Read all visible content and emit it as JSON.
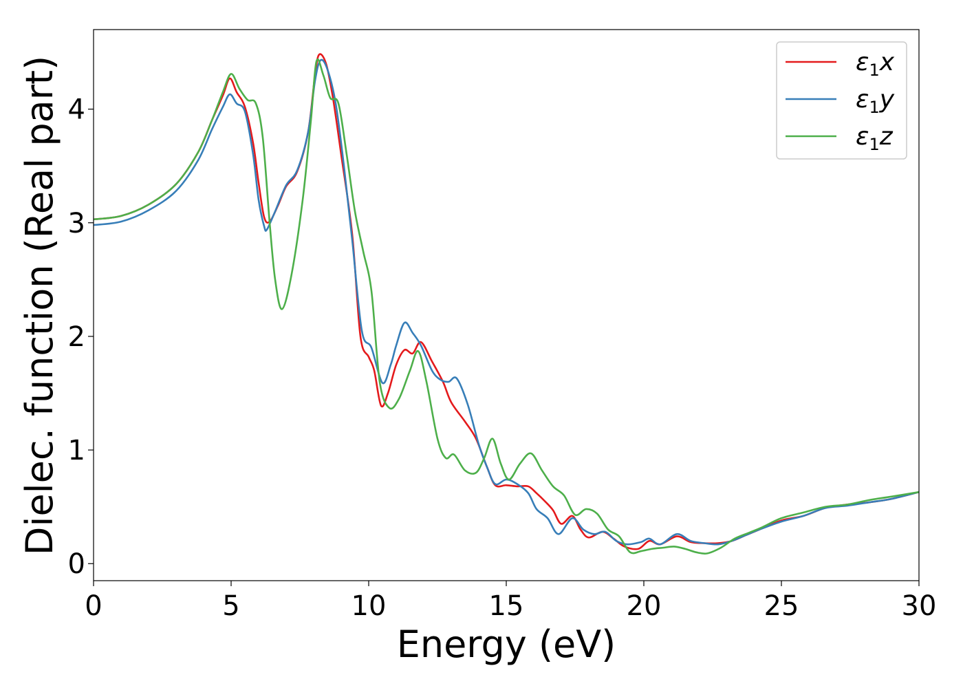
{
  "chart_data": {
    "type": "line",
    "xlabel": "Energy (eV)",
    "ylabel": "Dielec. function (Real part)",
    "xlim": [
      0,
      30
    ],
    "ylim": [
      -0.15,
      4.7
    ],
    "xticks": [
      0,
      5,
      10,
      15,
      20,
      25,
      30
    ],
    "yticks": [
      0,
      1,
      2,
      3,
      4
    ],
    "grid": false,
    "legend_position": "top-right",
    "series": [
      {
        "name": "ε1x",
        "legend_base": "ε",
        "legend_sub": "1",
        "legend_tail": "x",
        "color": "#e41a1c",
        "points": [
          [
            0,
            3.03
          ],
          [
            1,
            3.06
          ],
          [
            2,
            3.16
          ],
          [
            3,
            3.34
          ],
          [
            3.8,
            3.62
          ],
          [
            4.3,
            3.9
          ],
          [
            4.7,
            4.12
          ],
          [
            4.95,
            4.27
          ],
          [
            5.2,
            4.15
          ],
          [
            5.5,
            4.02
          ],
          [
            5.8,
            3.7
          ],
          [
            6.0,
            3.35
          ],
          [
            6.2,
            3.05
          ],
          [
            6.4,
            3.01
          ],
          [
            6.7,
            3.15
          ],
          [
            7.0,
            3.32
          ],
          [
            7.4,
            3.45
          ],
          [
            7.8,
            3.8
          ],
          [
            8.05,
            4.3
          ],
          [
            8.2,
            4.48
          ],
          [
            8.45,
            4.4
          ],
          [
            8.7,
            4.1
          ],
          [
            9.0,
            3.6
          ],
          [
            9.4,
            2.9
          ],
          [
            9.7,
            2.0
          ],
          [
            10.0,
            1.82
          ],
          [
            10.2,
            1.7
          ],
          [
            10.45,
            1.39
          ],
          [
            10.7,
            1.5
          ],
          [
            11.0,
            1.75
          ],
          [
            11.3,
            1.88
          ],
          [
            11.6,
            1.85
          ],
          [
            11.9,
            1.95
          ],
          [
            12.3,
            1.78
          ],
          [
            12.7,
            1.6
          ],
          [
            13.0,
            1.42
          ],
          [
            13.5,
            1.25
          ],
          [
            13.9,
            1.1
          ],
          [
            14.3,
            0.85
          ],
          [
            14.6,
            0.69
          ],
          [
            15.0,
            0.69
          ],
          [
            15.4,
            0.68
          ],
          [
            15.8,
            0.68
          ],
          [
            16.1,
            0.62
          ],
          [
            16.4,
            0.55
          ],
          [
            16.7,
            0.47
          ],
          [
            17.0,
            0.35
          ],
          [
            17.4,
            0.42
          ],
          [
            17.7,
            0.3
          ],
          [
            18.0,
            0.23
          ],
          [
            18.5,
            0.28
          ],
          [
            18.9,
            0.22
          ],
          [
            19.3,
            0.15
          ],
          [
            19.8,
            0.13
          ],
          [
            20.2,
            0.2
          ],
          [
            20.6,
            0.17
          ],
          [
            21.2,
            0.24
          ],
          [
            21.7,
            0.19
          ],
          [
            22.2,
            0.18
          ],
          [
            22.7,
            0.18
          ],
          [
            23.2,
            0.2
          ],
          [
            23.7,
            0.25
          ],
          [
            24.2,
            0.3
          ],
          [
            25,
            0.38
          ],
          [
            25.8,
            0.42
          ],
          [
            26.6,
            0.49
          ],
          [
            27.4,
            0.52
          ],
          [
            28.2,
            0.54
          ],
          [
            29,
            0.57
          ],
          [
            30,
            0.63
          ]
        ]
      },
      {
        "name": "ε1y",
        "legend_base": "ε",
        "legend_sub": "1",
        "legend_tail": "y",
        "color": "#377eb8",
        "points": [
          [
            0,
            2.98
          ],
          [
            1,
            3.01
          ],
          [
            2,
            3.11
          ],
          [
            3,
            3.28
          ],
          [
            3.8,
            3.55
          ],
          [
            4.3,
            3.82
          ],
          [
            4.7,
            4.02
          ],
          [
            4.95,
            4.13
          ],
          [
            5.2,
            4.05
          ],
          [
            5.5,
            3.98
          ],
          [
            5.8,
            3.6
          ],
          [
            6.0,
            3.2
          ],
          [
            6.2,
            2.97
          ],
          [
            6.3,
            2.94
          ],
          [
            6.6,
            3.1
          ],
          [
            7.0,
            3.33
          ],
          [
            7.4,
            3.46
          ],
          [
            7.8,
            3.8
          ],
          [
            8.05,
            4.25
          ],
          [
            8.25,
            4.43
          ],
          [
            8.5,
            4.35
          ],
          [
            8.8,
            4.05
          ],
          [
            9.1,
            3.5
          ],
          [
            9.4,
            2.85
          ],
          [
            9.75,
            2.05
          ],
          [
            10.1,
            1.9
          ],
          [
            10.5,
            1.59
          ],
          [
            10.8,
            1.75
          ],
          [
            11.0,
            1.92
          ],
          [
            11.3,
            2.12
          ],
          [
            11.6,
            2.03
          ],
          [
            11.9,
            1.92
          ],
          [
            12.3,
            1.7
          ],
          [
            12.6,
            1.62
          ],
          [
            12.9,
            1.6
          ],
          [
            13.2,
            1.63
          ],
          [
            13.6,
            1.4
          ],
          [
            14.0,
            1.05
          ],
          [
            14.3,
            0.85
          ],
          [
            14.6,
            0.7
          ],
          [
            15.0,
            0.74
          ],
          [
            15.4,
            0.7
          ],
          [
            15.8,
            0.62
          ],
          [
            16.1,
            0.48
          ],
          [
            16.5,
            0.4
          ],
          [
            16.9,
            0.26
          ],
          [
            17.4,
            0.4
          ],
          [
            17.8,
            0.3
          ],
          [
            18.2,
            0.26
          ],
          [
            18.6,
            0.28
          ],
          [
            19.0,
            0.2
          ],
          [
            19.4,
            0.17
          ],
          [
            19.9,
            0.19
          ],
          [
            20.2,
            0.22
          ],
          [
            20.6,
            0.17
          ],
          [
            21.2,
            0.26
          ],
          [
            21.7,
            0.2
          ],
          [
            22.2,
            0.18
          ],
          [
            22.7,
            0.17
          ],
          [
            23.2,
            0.2
          ],
          [
            23.7,
            0.25
          ],
          [
            24.2,
            0.3
          ],
          [
            25,
            0.37
          ],
          [
            25.8,
            0.42
          ],
          [
            26.6,
            0.49
          ],
          [
            27.4,
            0.51
          ],
          [
            28.2,
            0.54
          ],
          [
            29,
            0.57
          ],
          [
            30,
            0.63
          ]
        ]
      },
      {
        "name": "ε1z",
        "legend_base": "ε",
        "legend_sub": "1",
        "legend_tail": "z",
        "color": "#4daf4a",
        "points": [
          [
            0,
            3.03
          ],
          [
            1,
            3.06
          ],
          [
            2,
            3.16
          ],
          [
            3,
            3.34
          ],
          [
            3.8,
            3.62
          ],
          [
            4.3,
            3.9
          ],
          [
            4.7,
            4.15
          ],
          [
            5.0,
            4.31
          ],
          [
            5.3,
            4.18
          ],
          [
            5.6,
            4.08
          ],
          [
            5.9,
            4.05
          ],
          [
            6.15,
            3.75
          ],
          [
            6.4,
            3.0
          ],
          [
            6.6,
            2.5
          ],
          [
            6.85,
            2.24
          ],
          [
            7.2,
            2.55
          ],
          [
            7.6,
            3.2
          ],
          [
            7.9,
            3.9
          ],
          [
            8.1,
            4.42
          ],
          [
            8.35,
            4.3
          ],
          [
            8.6,
            4.1
          ],
          [
            8.9,
            4.05
          ],
          [
            9.2,
            3.6
          ],
          [
            9.5,
            3.1
          ],
          [
            9.8,
            2.75
          ],
          [
            10.1,
            2.4
          ],
          [
            10.4,
            1.6
          ],
          [
            10.75,
            1.37
          ],
          [
            11.1,
            1.45
          ],
          [
            11.5,
            1.7
          ],
          [
            11.8,
            1.87
          ],
          [
            12.1,
            1.6
          ],
          [
            12.5,
            1.1
          ],
          [
            12.8,
            0.93
          ],
          [
            13.1,
            0.96
          ],
          [
            13.5,
            0.82
          ],
          [
            13.9,
            0.8
          ],
          [
            14.2,
            0.93
          ],
          [
            14.5,
            1.1
          ],
          [
            14.8,
            0.88
          ],
          [
            15.1,
            0.74
          ],
          [
            15.5,
            0.88
          ],
          [
            15.9,
            0.97
          ],
          [
            16.3,
            0.82
          ],
          [
            16.7,
            0.68
          ],
          [
            17.1,
            0.6
          ],
          [
            17.5,
            0.43
          ],
          [
            17.9,
            0.48
          ],
          [
            18.3,
            0.44
          ],
          [
            18.7,
            0.3
          ],
          [
            19.1,
            0.24
          ],
          [
            19.5,
            0.1
          ],
          [
            19.9,
            0.11
          ],
          [
            20.3,
            0.13
          ],
          [
            20.7,
            0.14
          ],
          [
            21.1,
            0.15
          ],
          [
            21.5,
            0.13
          ],
          [
            21.9,
            0.1
          ],
          [
            22.3,
            0.09
          ],
          [
            22.8,
            0.14
          ],
          [
            23.3,
            0.22
          ],
          [
            23.8,
            0.27
          ],
          [
            24.3,
            0.32
          ],
          [
            25,
            0.4
          ],
          [
            25.8,
            0.45
          ],
          [
            26.6,
            0.5
          ],
          [
            27.4,
            0.52
          ],
          [
            28.2,
            0.56
          ],
          [
            29,
            0.59
          ],
          [
            30,
            0.63
          ]
        ]
      }
    ]
  }
}
